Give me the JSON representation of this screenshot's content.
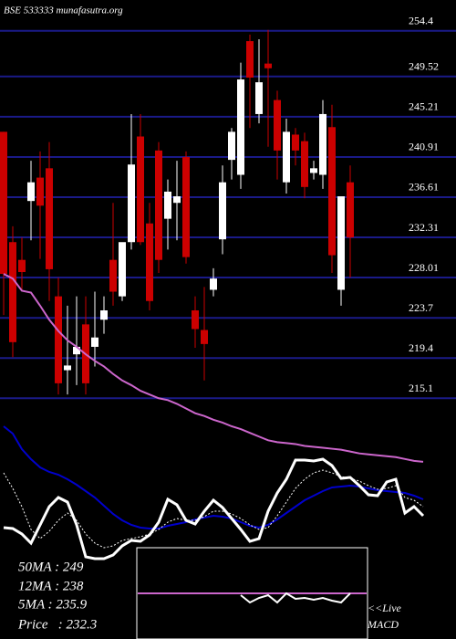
{
  "chart_data": [
    {
      "type": "candlestick",
      "title": "BSE 533333 munafasutra.org",
      "open": [
        243.6,
        231.8,
        229.9,
        236.2,
        238.7,
        239.7,
        226.0,
        218.1,
        219.8,
        223.0,
        220.6,
        223.5,
        229.9,
        226.0,
        231.8,
        243.1,
        233.8,
        241.6,
        234.3,
        236.0,
        240.9,
        224.5,
        222.4,
        226.7,
        232.1,
        240.6,
        239.0,
        253.3,
        245.5,
        250.9,
        247.0,
        238.2,
        243.3,
        242.6,
        239.2,
        239.0,
        244.1,
        226.7,
        238.2
      ],
      "high": [
        243.6,
        233.5,
        232.3,
        240.5,
        241.5,
        242.5,
        228.0,
        225.0,
        226.0,
        226.0,
        226.5,
        226.0,
        236.0,
        231.5,
        245.5,
        245.5,
        236.0,
        242.5,
        238.5,
        240.5,
        241.5,
        226.0,
        227.0,
        229.0,
        240.0,
        244.0,
        251.0,
        254.0,
        253.5,
        254.5,
        248.0,
        245.0,
        244.0,
        243.5,
        240.5,
        247.0,
        246.5,
        236.5,
        240.0
      ],
      "low": [
        224.0,
        219.5,
        226.5,
        232.0,
        230.0,
        225.5,
        215.5,
        215.5,
        216.5,
        215.5,
        218.5,
        222.0,
        225.0,
        225.5,
        231.0,
        231.5,
        224.5,
        228.5,
        231.0,
        232.0,
        229.5,
        220.5,
        217.0,
        226.0,
        230.5,
        238.5,
        237.5,
        244.0,
        244.5,
        242.0,
        238.5,
        237.0,
        240.0,
        236.5,
        238.5,
        237.5,
        228.5,
        225.0,
        228.0
      ],
      "close": [
        228.4,
        221.1,
        228.6,
        238.2,
        235.7,
        228.9,
        216.7,
        218.6,
        220.6,
        216.7,
        221.6,
        224.5,
        226.5,
        231.8,
        240.1,
        231.8,
        225.5,
        229.9,
        237.2,
        236.7,
        230.2,
        222.5,
        220.9,
        227.9,
        238.2,
        243.6,
        249.2,
        249.4,
        248.9,
        250.4,
        241.6,
        243.6,
        241.6,
        237.7,
        239.7,
        245.5,
        230.4,
        236.7,
        232.3
      ],
      "up_color": "#ffffff",
      "down_color": "#cc0000",
      "ma_values": [
        228.4,
        227.9,
        226.6,
        226.4,
        225.0,
        223.5,
        222.3,
        221.3,
        220.6,
        219.8,
        219.1,
        218.5,
        217.7,
        217.0,
        216.5,
        215.9,
        215.5,
        215.1,
        214.9,
        214.5,
        214.0,
        213.5,
        213.2,
        212.8,
        212.5,
        212.1,
        211.8,
        211.4,
        211.0,
        210.6,
        210.4,
        210.3,
        210.2,
        210.0,
        209.9,
        209.8,
        209.7,
        209.6,
        209.4,
        209.2,
        209.1,
        209.0,
        208.9,
        208.8,
        208.6,
        208.4,
        208.3
      ],
      "ma_color": "#cc66cc",
      "ylim": [
        207.9,
        257.7
      ],
      "yticks": [
        254.4,
        249.52,
        245.21,
        240.91,
        236.61,
        232.31,
        228.01,
        223.7,
        219.4,
        215.1
      ],
      "grid": true,
      "grid_color": "#1a1a88",
      "annotations": [
        "50MA : 249",
        "12MA : 238",
        "5MA : 235.9",
        "Price   : 232.3"
      ]
    },
    {
      "type": "line",
      "ylim": [
        0,
        200
      ],
      "series": [
        {
          "color": "#0000cc",
          "style": "solid",
          "values": [
            173,
            165,
            148,
            137,
            128,
            123,
            120,
            115,
            109,
            102,
            95,
            86,
            77,
            70,
            65,
            62,
            61,
            61,
            64,
            66,
            68,
            71,
            73,
            75,
            74,
            72,
            68,
            64,
            62,
            65,
            71,
            78,
            85,
            92,
            97,
            102,
            106,
            107,
            108,
            107,
            105,
            103,
            102,
            101,
            100,
            97,
            93
          ]
        },
        {
          "color": "#ffffff",
          "style": "dotted",
          "values": [
            122,
            105,
            85,
            60,
            50,
            58,
            70,
            78,
            70,
            55,
            45,
            40,
            42,
            48,
            50,
            52,
            55,
            60,
            68,
            72,
            70,
            70,
            74,
            80,
            80,
            77,
            72,
            65,
            60,
            62,
            75,
            90,
            105,
            115,
            122,
            125,
            122,
            118,
            116,
            113,
            108,
            104,
            105,
            108,
            95,
            92,
            85
          ]
        },
        {
          "color": "#ffffff",
          "style": "thick",
          "values": [
            62,
            61,
            55,
            45,
            65,
            85,
            95,
            90,
            65,
            30,
            28,
            28,
            32,
            42,
            48,
            47,
            54,
            68,
            93,
            87,
            70,
            66,
            80,
            92,
            84,
            72,
            60,
            47,
            50,
            80,
            100,
            115,
            136,
            136,
            135,
            137,
            130,
            116,
            117,
            108,
            98,
            97,
            112,
            115,
            78,
            85,
            75
          ]
        }
      ]
    },
    {
      "type": "line",
      "title": "MACD",
      "subtitle": "<<Live",
      "ylim": [
        -50,
        50
      ],
      "zero_color": "#cc66cc",
      "series": [
        {
          "color": "#ffffff",
          "values": [
            null,
            null,
            null,
            null,
            null,
            null,
            null,
            null,
            null,
            null,
            null,
            null,
            null,
            null,
            null,
            null,
            null,
            null,
            null,
            null,
            null,
            null,
            null,
            null,
            null,
            null,
            -2,
            -10,
            -5,
            -2,
            -10,
            0,
            -6,
            -5,
            -7,
            -5,
            -8,
            -10,
            0,
            null,
            null,
            null,
            null,
            null,
            null,
            null,
            null
          ]
        }
      ]
    }
  ]
}
